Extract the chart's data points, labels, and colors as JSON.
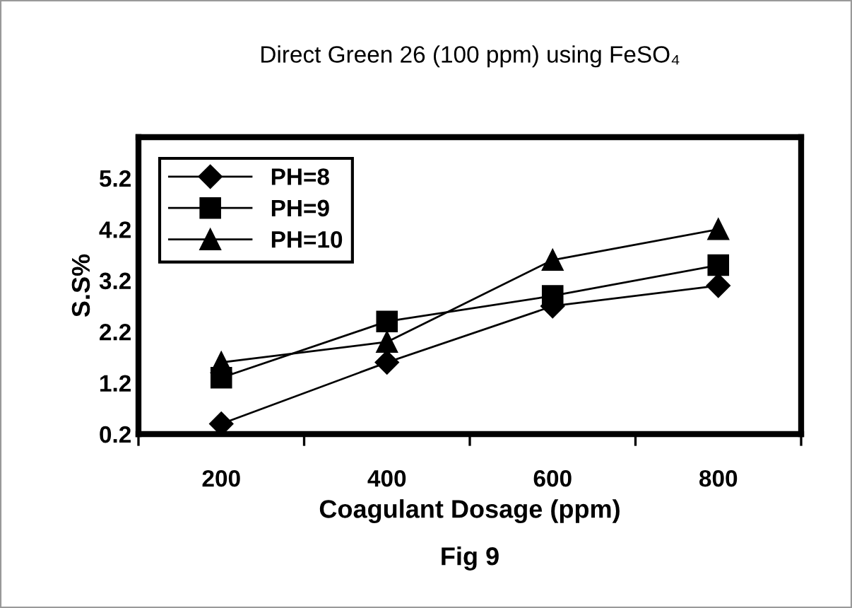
{
  "chart_data": {
    "type": "line",
    "title": "Direct Green 26 (100 ppm) using FeSO₄",
    "xlabel": "Coagulant Dosage (ppm)",
    "ylabel": "S.S%",
    "annotations": [
      "Fig 9"
    ],
    "categories": [
      "200",
      "400",
      "600",
      "800"
    ],
    "series": [
      {
        "name": "PH=8",
        "color": "#000000",
        "marker": "diamond",
        "values": [
          0.4,
          1.6,
          2.7,
          3.1
        ]
      },
      {
        "name": "PH=9",
        "color": "#000000",
        "marker": "square",
        "values": [
          1.3,
          2.4,
          2.9,
          3.5
        ]
      },
      {
        "name": "PH=10",
        "color": "#000000",
        "marker": "triangle",
        "values": [
          1.6,
          2.0,
          3.6,
          4.2
        ]
      }
    ],
    "ylim": [
      0.2,
      6.0
    ],
    "yticks": [
      0.2,
      1.2,
      2.2,
      3.2,
      4.2,
      5.2
    ],
    "grid": false,
    "legend": "top left"
  }
}
